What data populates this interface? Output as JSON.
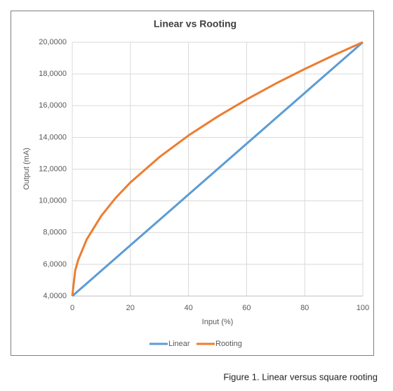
{
  "chart_data": {
    "type": "line",
    "title": "Linear vs Rooting",
    "x_label": "Input (%)",
    "y_label": "Output (mA)",
    "x": [
      0,
      1,
      2,
      5,
      10,
      15,
      20,
      30,
      40,
      50,
      60,
      70,
      80,
      90,
      100
    ],
    "series": [
      {
        "name": "Linear",
        "color": "#5b9bd5",
        "values": [
          4,
          4.16,
          4.32,
          4.8,
          5.6,
          6.4,
          7.2,
          8.8,
          10.4,
          12,
          13.6,
          15.2,
          16.8,
          18.4,
          20
        ]
      },
      {
        "name": "Rooting",
        "color": "#ed7d31",
        "values": [
          4,
          5.6,
          6.26,
          7.58,
          9.06,
          10.2,
          11.16,
          12.76,
          14.12,
          15.31,
          16.39,
          17.39,
          18.31,
          19.18,
          20
        ]
      }
    ],
    "xlim": [
      0,
      100
    ],
    "xticks": [
      0,
      20,
      40,
      60,
      80,
      100
    ],
    "ylim": [
      4,
      20
    ],
    "yticks": [
      {
        "value": 4,
        "label": "4,0000"
      },
      {
        "value": 6,
        "label": "6,0000"
      },
      {
        "value": 8,
        "label": "8,0000"
      },
      {
        "value": 10,
        "label": "10,0000"
      },
      {
        "value": 12,
        "label": "12,0000"
      },
      {
        "value": 14,
        "label": "14,0000"
      },
      {
        "value": 16,
        "label": "16,0000"
      },
      {
        "value": 18,
        "label": "18,0000"
      },
      {
        "value": 20,
        "label": "20,0000"
      }
    ],
    "grid": true,
    "legend": "bottom",
    "caption": "Figure 1. Linear versus square rooting"
  }
}
